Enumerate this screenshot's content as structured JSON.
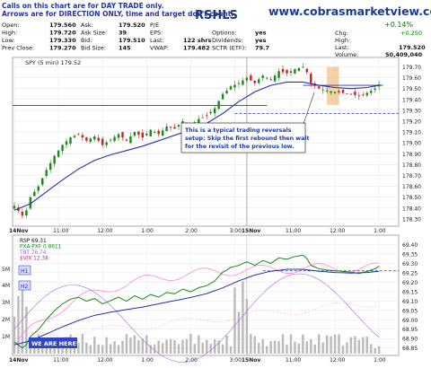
{
  "header": {
    "disclaimer_line1": "Calls on this chart are for DAY TRADE only.",
    "disclaimer_line2": "Arrows are for DIRECTION ONLY, time and target don't count.",
    "ticker_fragment": "RSHLS",
    "site": "www.cobrasmarketview.com",
    "change_pct": "+0.14%",
    "change_label": "Chg:",
    "change_value": "+0.250",
    "high_label": "High:",
    "high_value": "",
    "last_label": "Last:",
    "last_value": "179.520",
    "volume_label": "Volume:",
    "volume_value": "50,409,040",
    "quote_rows": [
      [
        {
          "l": "Open:",
          "v": "179.560"
        },
        {
          "l": "Ask:",
          "v": "179.520"
        },
        {
          "l": "P/E",
          "v": ""
        },
        {
          "l": "",
          "v": ""
        }
      ],
      [
        {
          "l": "High:",
          "v": "179.720"
        },
        {
          "l": "Ask Size:",
          "v": "39"
        },
        {
          "l": "EPS:",
          "v": ""
        },
        {
          "l": "Options:",
          "v": "yes"
        }
      ],
      [
        {
          "l": "Low:",
          "v": "179.330"
        },
        {
          "l": "Bid:",
          "v": "179.510"
        },
        {
          "l": "Last:",
          "v": "122 shrs"
        },
        {
          "l": "Dividends:",
          "v": "yes"
        }
      ],
      [
        {
          "l": "Prev Close:",
          "v": "179.270"
        },
        {
          "l": "Bid Size:",
          "v": "145"
        },
        {
          "l": "VWAP:",
          "v": "179.482"
        },
        {
          "l": "SCTR (ETF):",
          "v": "79.7"
        }
      ]
    ]
  },
  "chart_data": [
    {
      "type": "candlestick",
      "legend": "SPY (5 min) 179.52",
      "y_ticks": [
        "179.70",
        "179.60",
        "179.50",
        "179.40",
        "179.30",
        "179.20",
        "179.10",
        "179.00",
        "178.90",
        "178.80",
        "178.70",
        "178.60",
        "178.50",
        "178.40",
        "178.30"
      ],
      "x_ticks": [
        "14Nov",
        "11:00",
        "12:00",
        "1:00",
        "2:00",
        "3:00",
        "15Nov",
        "11:00",
        "12:00",
        "1:00",
        "2:00",
        "3:00"
      ],
      "x_ticks_bottom": [
        "14Nov",
        "11:00",
        "12:00",
        "1:00",
        "2:00",
        "3:00",
        "15Nov",
        "11:00",
        "12:00",
        "1:00",
        "2:00",
        "3:00"
      ],
      "ylim": [
        178.25,
        179.77
      ],
      "prev_close": 179.27,
      "resistance": 179.53,
      "price_path": [
        [
          0,
          178.42
        ],
        [
          2,
          178.33
        ],
        [
          3,
          178.38
        ],
        [
          4,
          178.5
        ],
        [
          6,
          178.6
        ],
        [
          8,
          178.75
        ],
        [
          10,
          178.88
        ],
        [
          12,
          178.98
        ],
        [
          14,
          179.05
        ],
        [
          16,
          179.08
        ],
        [
          18,
          179.02
        ],
        [
          20,
          179.06
        ],
        [
          22,
          178.98
        ],
        [
          24,
          179.03
        ],
        [
          26,
          179.08
        ],
        [
          28,
          179.02
        ],
        [
          30,
          179.1
        ],
        [
          32,
          179.05
        ],
        [
          34,
          179.12
        ],
        [
          36,
          179.08
        ],
        [
          38,
          179.15
        ],
        [
          40,
          179.13
        ],
        [
          42,
          179.2
        ],
        [
          44,
          179.16
        ],
        [
          46,
          179.22
        ],
        [
          48,
          179.25
        ],
        [
          50,
          179.32
        ],
        [
          52,
          179.45
        ],
        [
          53,
          179.48
        ],
        [
          54,
          179.52
        ],
        [
          56,
          179.55
        ],
        [
          58,
          179.6
        ],
        [
          60,
          179.55
        ],
        [
          62,
          179.62
        ],
        [
          64,
          179.58
        ],
        [
          66,
          179.66
        ],
        [
          68,
          179.64
        ],
        [
          70,
          179.68
        ],
        [
          72,
          179.7
        ],
        [
          73,
          179.65
        ],
        [
          74,
          179.55
        ],
        [
          76,
          179.5
        ],
        [
          78,
          179.48
        ],
        [
          80,
          179.47
        ],
        [
          82,
          179.46
        ],
        [
          84,
          179.45
        ],
        [
          86,
          179.43
        ],
        [
          88,
          179.46
        ],
        [
          90,
          179.5
        ],
        [
          91,
          179.54
        ]
      ],
      "ma_path": [
        [
          0,
          178.38
        ],
        [
          4,
          178.44
        ],
        [
          8,
          178.55
        ],
        [
          12,
          178.66
        ],
        [
          16,
          178.76
        ],
        [
          20,
          178.84
        ],
        [
          24,
          178.89
        ],
        [
          28,
          178.93
        ],
        [
          32,
          178.97
        ],
        [
          36,
          179.02
        ],
        [
          40,
          179.07
        ],
        [
          44,
          179.12
        ],
        [
          48,
          179.18
        ],
        [
          52,
          179.27
        ],
        [
          56,
          179.38
        ],
        [
          60,
          179.47
        ],
        [
          64,
          179.53
        ],
        [
          68,
          179.56
        ],
        [
          72,
          179.56
        ],
        [
          76,
          179.53
        ],
        [
          80,
          179.51
        ],
        [
          84,
          179.5
        ],
        [
          88,
          179.51
        ],
        [
          91,
          179.53
        ]
      ],
      "annotation": [
        "This is a typical trading reversals",
        "setup: Skip the first rebound then wait",
        "for the revisit of the previous low."
      ]
    },
    {
      "type": "line",
      "legend": [
        "RSP 69.31",
        "PXA-PXF 0.8611",
        "TBT 76.74",
        "$VIX 12.38"
      ],
      "y_ticks": [
        "69.40",
        "69.35",
        "69.30",
        "69.25",
        "69.20",
        "69.15",
        "69.10",
        "69.05",
        "69.00",
        "68.95",
        "68.90",
        "68.85"
      ],
      "volume_labels": [
        "5M",
        "4M",
        "3M",
        "2M",
        "1M"
      ],
      "buttons": [
        "H1",
        "H2"
      ],
      "callout": "WE ARE HERE!",
      "ylim": [
        68.82,
        69.44
      ]
    }
  ]
}
